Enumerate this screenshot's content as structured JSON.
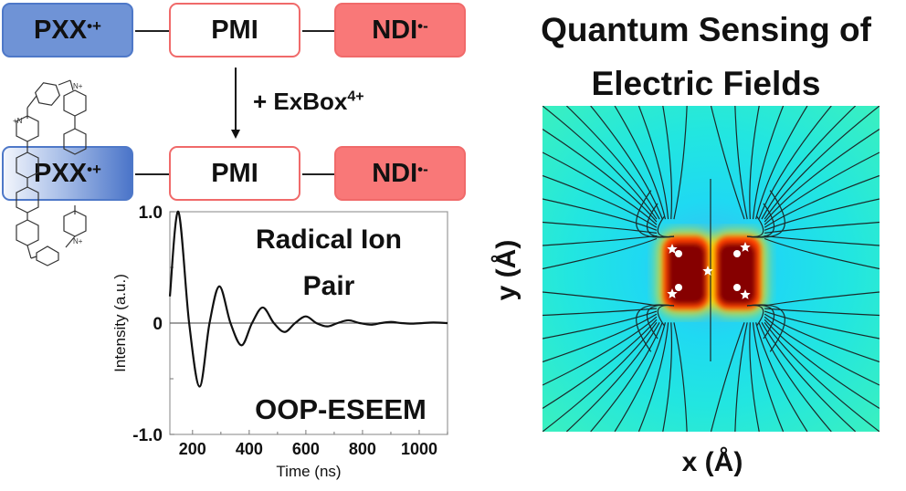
{
  "scheme": {
    "row1": {
      "donor": {
        "text": "PXX",
        "sup": "•+"
      },
      "bridge": {
        "text": "PMI"
      },
      "acceptor": {
        "text": "NDI",
        "sup": "•-"
      }
    },
    "arrow_label": {
      "text": "+ ExBox",
      "sup": "4+"
    },
    "row2": {
      "donor": {
        "text": "PXX",
        "sup": "•+"
      },
      "bridge": {
        "text": "PMI"
      },
      "acceptor": {
        "text": "NDI",
        "sup": "•-"
      }
    },
    "colors": {
      "donor": "#6f93d6",
      "acceptor": "#f97878",
      "bridge_border": "#f06a6a"
    }
  },
  "title": {
    "line1": "Quantum Sensing of",
    "line2": "Electric Fields"
  },
  "field_map": {
    "xlabel": "x (Å)",
    "ylabel": "y (Å)"
  },
  "chart_data": {
    "type": "line",
    "title": "",
    "annotations": [
      "Radical Ion",
      "Pair",
      "OOP-ESEEM"
    ],
    "xlabel": "Time (ns)",
    "ylabel": "Intensity (a.u.)",
    "xlim": [
      120,
      1100
    ],
    "ylim": [
      -1.0,
      1.0
    ],
    "xticks": [
      200,
      400,
      600,
      800,
      1000
    ],
    "xtick_labels": [
      "200",
      "400",
      "600",
      "800",
      "1000"
    ],
    "yticks": [
      1.0,
      0,
      -1.0
    ],
    "ytick_labels": [
      "1.0",
      "0",
      "-1.0"
    ],
    "grid": false,
    "series": [
      {
        "name": "OOP-ESEEM",
        "x": [
          120,
          150,
          188,
          225,
          260,
          295,
          334,
          373,
          410,
          448,
          487,
          525,
          562,
          600,
          637,
          675,
          712,
          750,
          790,
          830,
          865,
          900,
          937,
          975,
          1012,
          1050,
          1100
        ],
        "y": [
          0.24,
          1.0,
          0.0,
          -0.57,
          0.0,
          0.33,
          0.0,
          -0.2,
          0.0,
          0.14,
          0.0,
          -0.08,
          0.0,
          0.06,
          0.0,
          -0.03,
          0.0,
          0.025,
          0.0,
          -0.015,
          0.0,
          0.01,
          0.0,
          -0.005,
          0.0,
          0.005,
          0.0
        ]
      }
    ]
  }
}
